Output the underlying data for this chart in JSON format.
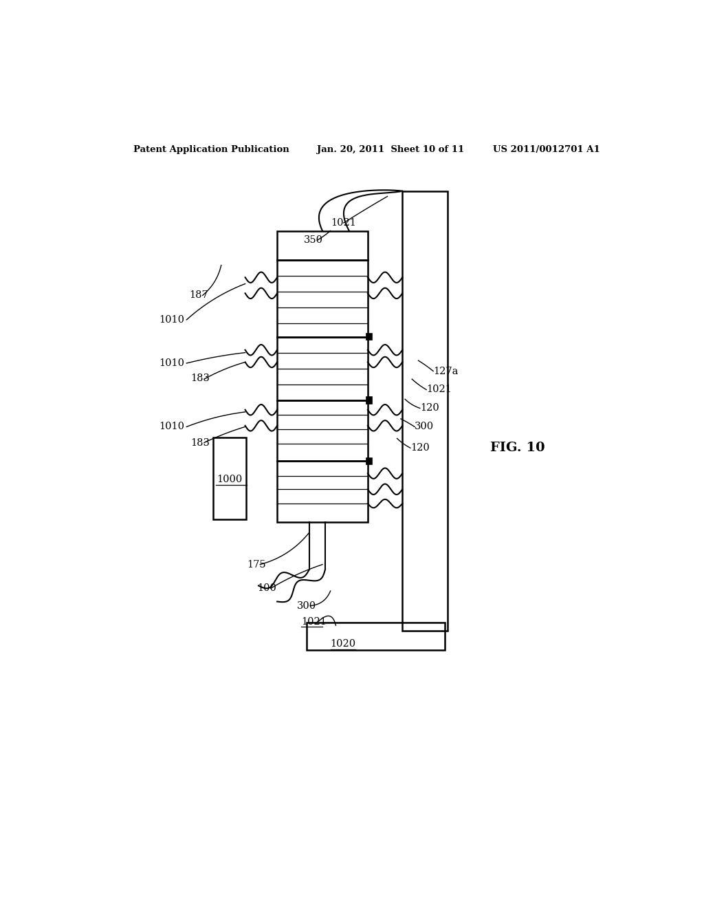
{
  "title_left": "Patent Application Publication",
  "title_mid": "Jan. 20, 2011  Sheet 10 of 11",
  "title_right": "US 2011/0012701 A1",
  "fig_label": "FIG. 10",
  "background": "#ffffff"
}
